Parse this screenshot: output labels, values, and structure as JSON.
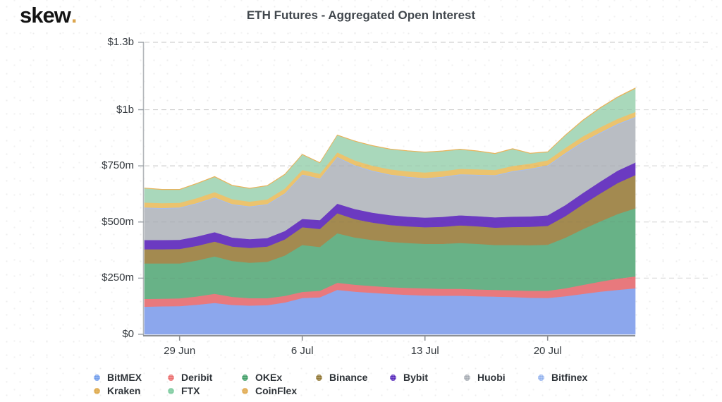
{
  "header": {
    "logo_text": "skew",
    "logo_dot": ".",
    "title": "ETH Futures - Aggregated Open Interest",
    "accent_color": "#dca64e"
  },
  "chart_data": {
    "type": "area",
    "stacked": true,
    "title": "ETH Futures - Aggregated Open Interest",
    "unit": "USD millions",
    "grid": "dashed-horizontal",
    "legend_position": "bottom",
    "ylim": [
      0,
      1300
    ],
    "x": [
      "27 Jun",
      "28 Jun",
      "29 Jun",
      "30 Jun",
      "1 Jul",
      "2 Jul",
      "3 Jul",
      "4 Jul",
      "5 Jul",
      "6 Jul",
      "7 Jul",
      "8 Jul",
      "9 Jul",
      "10 Jul",
      "11 Jul",
      "12 Jul",
      "13 Jul",
      "14 Jul",
      "15 Jul",
      "16 Jul",
      "17 Jul",
      "18 Jul",
      "19 Jul",
      "20 Jul",
      "21 Jul",
      "22 Jul",
      "23 Jul",
      "24 Jul",
      "25 Jul"
    ],
    "x_ticks": [
      {
        "label": "29 Jun",
        "index": 2
      },
      {
        "label": "6 Jul",
        "index": 9
      },
      {
        "label": "13 Jul",
        "index": 16
      },
      {
        "label": "20 Jul",
        "index": 23
      }
    ],
    "y_ticks": [
      {
        "label": "$0",
        "value": 0
      },
      {
        "label": "$250m",
        "value": 250
      },
      {
        "label": "$500m",
        "value": 500
      },
      {
        "label": "$750m",
        "value": 750
      },
      {
        "label": "$1b",
        "value": 1000
      },
      {
        "label": "$1.3b",
        "value": 1300
      }
    ],
    "series": [
      {
        "name": "BitMEX",
        "color": "#6e9beb",
        "fill": "#8ca7ed",
        "values": [
          123,
          125,
          126,
          132,
          140,
          131,
          128,
          130,
          142,
          162,
          165,
          198,
          190,
          185,
          180,
          176,
          173,
          172,
          172,
          170,
          168,
          166,
          163,
          162,
          170,
          180,
          190,
          198,
          205
        ]
      },
      {
        "name": "Deribit",
        "color": "#ea6a6a",
        "fill": "#e8797d",
        "values": [
          35,
          34,
          34,
          37,
          41,
          36,
          33,
          31,
          29,
          27,
          29,
          32,
          31,
          30,
          30,
          31,
          32,
          31,
          31,
          30,
          30,
          30,
          31,
          32,
          35,
          40,
          45,
          50,
          53
        ]
      },
      {
        "name": "OKEx",
        "color": "#3d9c64",
        "fill": "#68b287",
        "values": [
          158,
          157,
          156,
          160,
          166,
          160,
          158,
          162,
          180,
          209,
          195,
          220,
          210,
          205,
          202,
          200,
          198,
          200,
          204,
          203,
          200,
          202,
          203,
          205,
          225,
          248,
          268,
          288,
          303
        ]
      },
      {
        "name": "Binance",
        "color": "#8f7430",
        "fill": "#a38a50",
        "values": [
          63,
          63,
          64,
          65,
          66,
          64,
          66,
          68,
          72,
          79,
          80,
          89,
          82,
          78,
          75,
          74,
          74,
          76,
          78,
          78,
          77,
          80,
          82,
          84,
          96,
          110,
          124,
          138,
          148
        ]
      },
      {
        "name": "Bybit",
        "color": "#5527ba",
        "fill": "#6b3ac1",
        "values": [
          41,
          41,
          41,
          42,
          42,
          40,
          39,
          38,
          37,
          37,
          40,
          43,
          45,
          44,
          44,
          43,
          43,
          44,
          45,
          45,
          46,
          46,
          46,
          47,
          49,
          51,
          53,
          55,
          56
        ]
      },
      {
        "name": "Huobi",
        "color": "#a6abb2",
        "fill": "#b9bdc3",
        "values": [
          142,
          140,
          141,
          146,
          152,
          146,
          143,
          148,
          165,
          195,
          182,
          205,
          192,
          184,
          178,
          175,
          173,
          176,
          180,
          182,
          185,
          200,
          210,
          220,
          228,
          225,
          215,
          205,
          199
        ]
      },
      {
        "name": "Bitfinex",
        "color": "#93b2ee",
        "fill": "#a6bef0",
        "values": [
          3,
          3,
          3,
          3,
          3,
          3,
          3,
          3,
          3,
          3,
          3,
          3,
          3,
          3,
          3,
          3,
          3,
          3,
          3,
          3,
          3,
          3,
          3,
          3,
          4,
          4,
          4,
          4,
          4
        ]
      },
      {
        "name": "Kraken",
        "color": "#dda747",
        "fill": "#ebc36e",
        "values": [
          22,
          21,
          21,
          22,
          23,
          22,
          21,
          21,
          21,
          20,
          21,
          20,
          21,
          22,
          23,
          24,
          25,
          25,
          24,
          24,
          23,
          23,
          22,
          22,
          23,
          23,
          23,
          22,
          22
        ]
      },
      {
        "name": "FTX",
        "color": "#7cca9e",
        "fill": "#a9d8bb",
        "values": [
          63,
          60,
          58,
          64,
          68,
          60,
          58,
          60,
          62,
          68,
          48,
          76,
          85,
          88,
          89,
          90,
          89,
          88,
          86,
          80,
          72,
          75,
          45,
          36,
          55,
          70,
          85,
          95,
          104
        ]
      },
      {
        "name": "CoinFlex",
        "color": "#e0a94e",
        "fill": "#e9b35b",
        "values": [
          2,
          2,
          2,
          2,
          2,
          2,
          2,
          2,
          2,
          2,
          2,
          2,
          2,
          2,
          2,
          2,
          2,
          2,
          2,
          2,
          2,
          2,
          2,
          2,
          2,
          3,
          3,
          3,
          3
        ]
      }
    ],
    "legend_rows": [
      [
        0,
        1,
        2,
        3,
        4,
        5,
        6
      ],
      [
        7,
        8,
        9
      ]
    ]
  }
}
